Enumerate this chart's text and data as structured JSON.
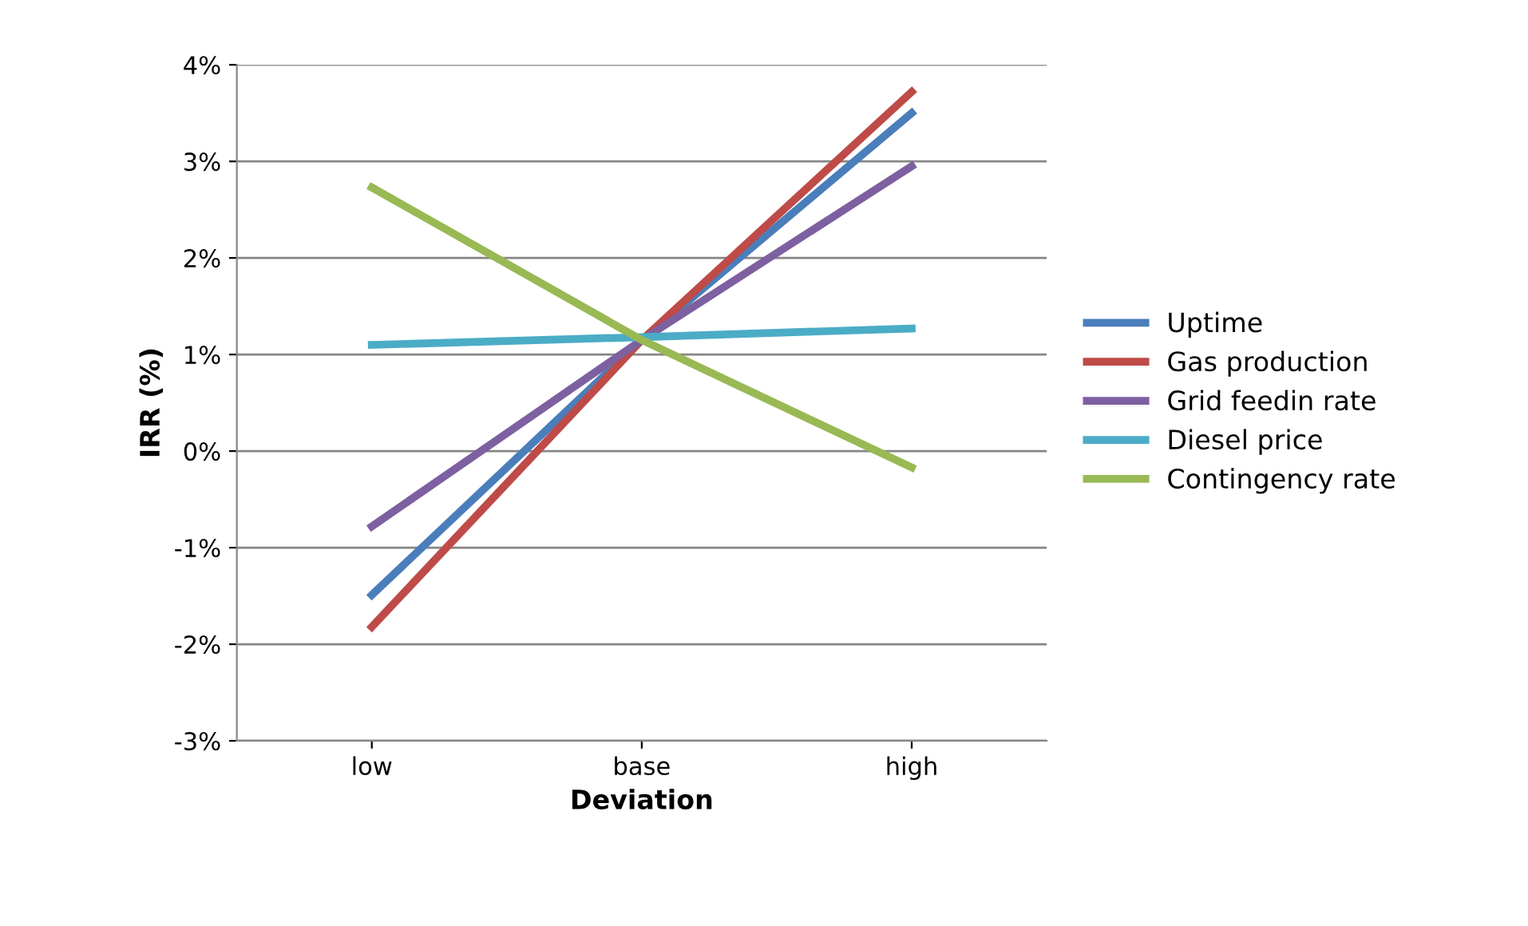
{
  "chart_data": {
    "type": "line",
    "xlabel": "Deviation",
    "ylabel": "IRR (%)",
    "categories": [
      "low",
      "base",
      "high"
    ],
    "series": [
      {
        "name": "Uptime",
        "color": "#4a7ebb",
        "values": [
          -1.49,
          1.15,
          3.5
        ]
      },
      {
        "name": "Gas production",
        "color": "#be4b48",
        "values": [
          -1.82,
          1.15,
          3.72
        ]
      },
      {
        "name": "Grid feedin rate",
        "color": "#7d60a0",
        "values": [
          -0.78,
          1.15,
          2.95
        ]
      },
      {
        "name": "Diesel price",
        "color": "#4bacc6",
        "values": [
          1.1,
          1.18,
          1.27
        ]
      },
      {
        "name": "Contingency rate",
        "color": "#98b954",
        "values": [
          2.73,
          1.15,
          -0.17
        ]
      }
    ],
    "ylim": [
      -3,
      4
    ],
    "yticks": [
      {
        "value": -3,
        "label": "-3%"
      },
      {
        "value": -2,
        "label": "-2%"
      },
      {
        "value": -1,
        "label": "-1%"
      },
      {
        "value": 0,
        "label": "0%"
      },
      {
        "value": 1,
        "label": "1%"
      },
      {
        "value": 2,
        "label": "2%"
      },
      {
        "value": 3,
        "label": "3%"
      },
      {
        "value": 4,
        "label": "4%"
      }
    ],
    "grid": "y",
    "legend": "right",
    "marker": "none",
    "line_style": "solid"
  }
}
